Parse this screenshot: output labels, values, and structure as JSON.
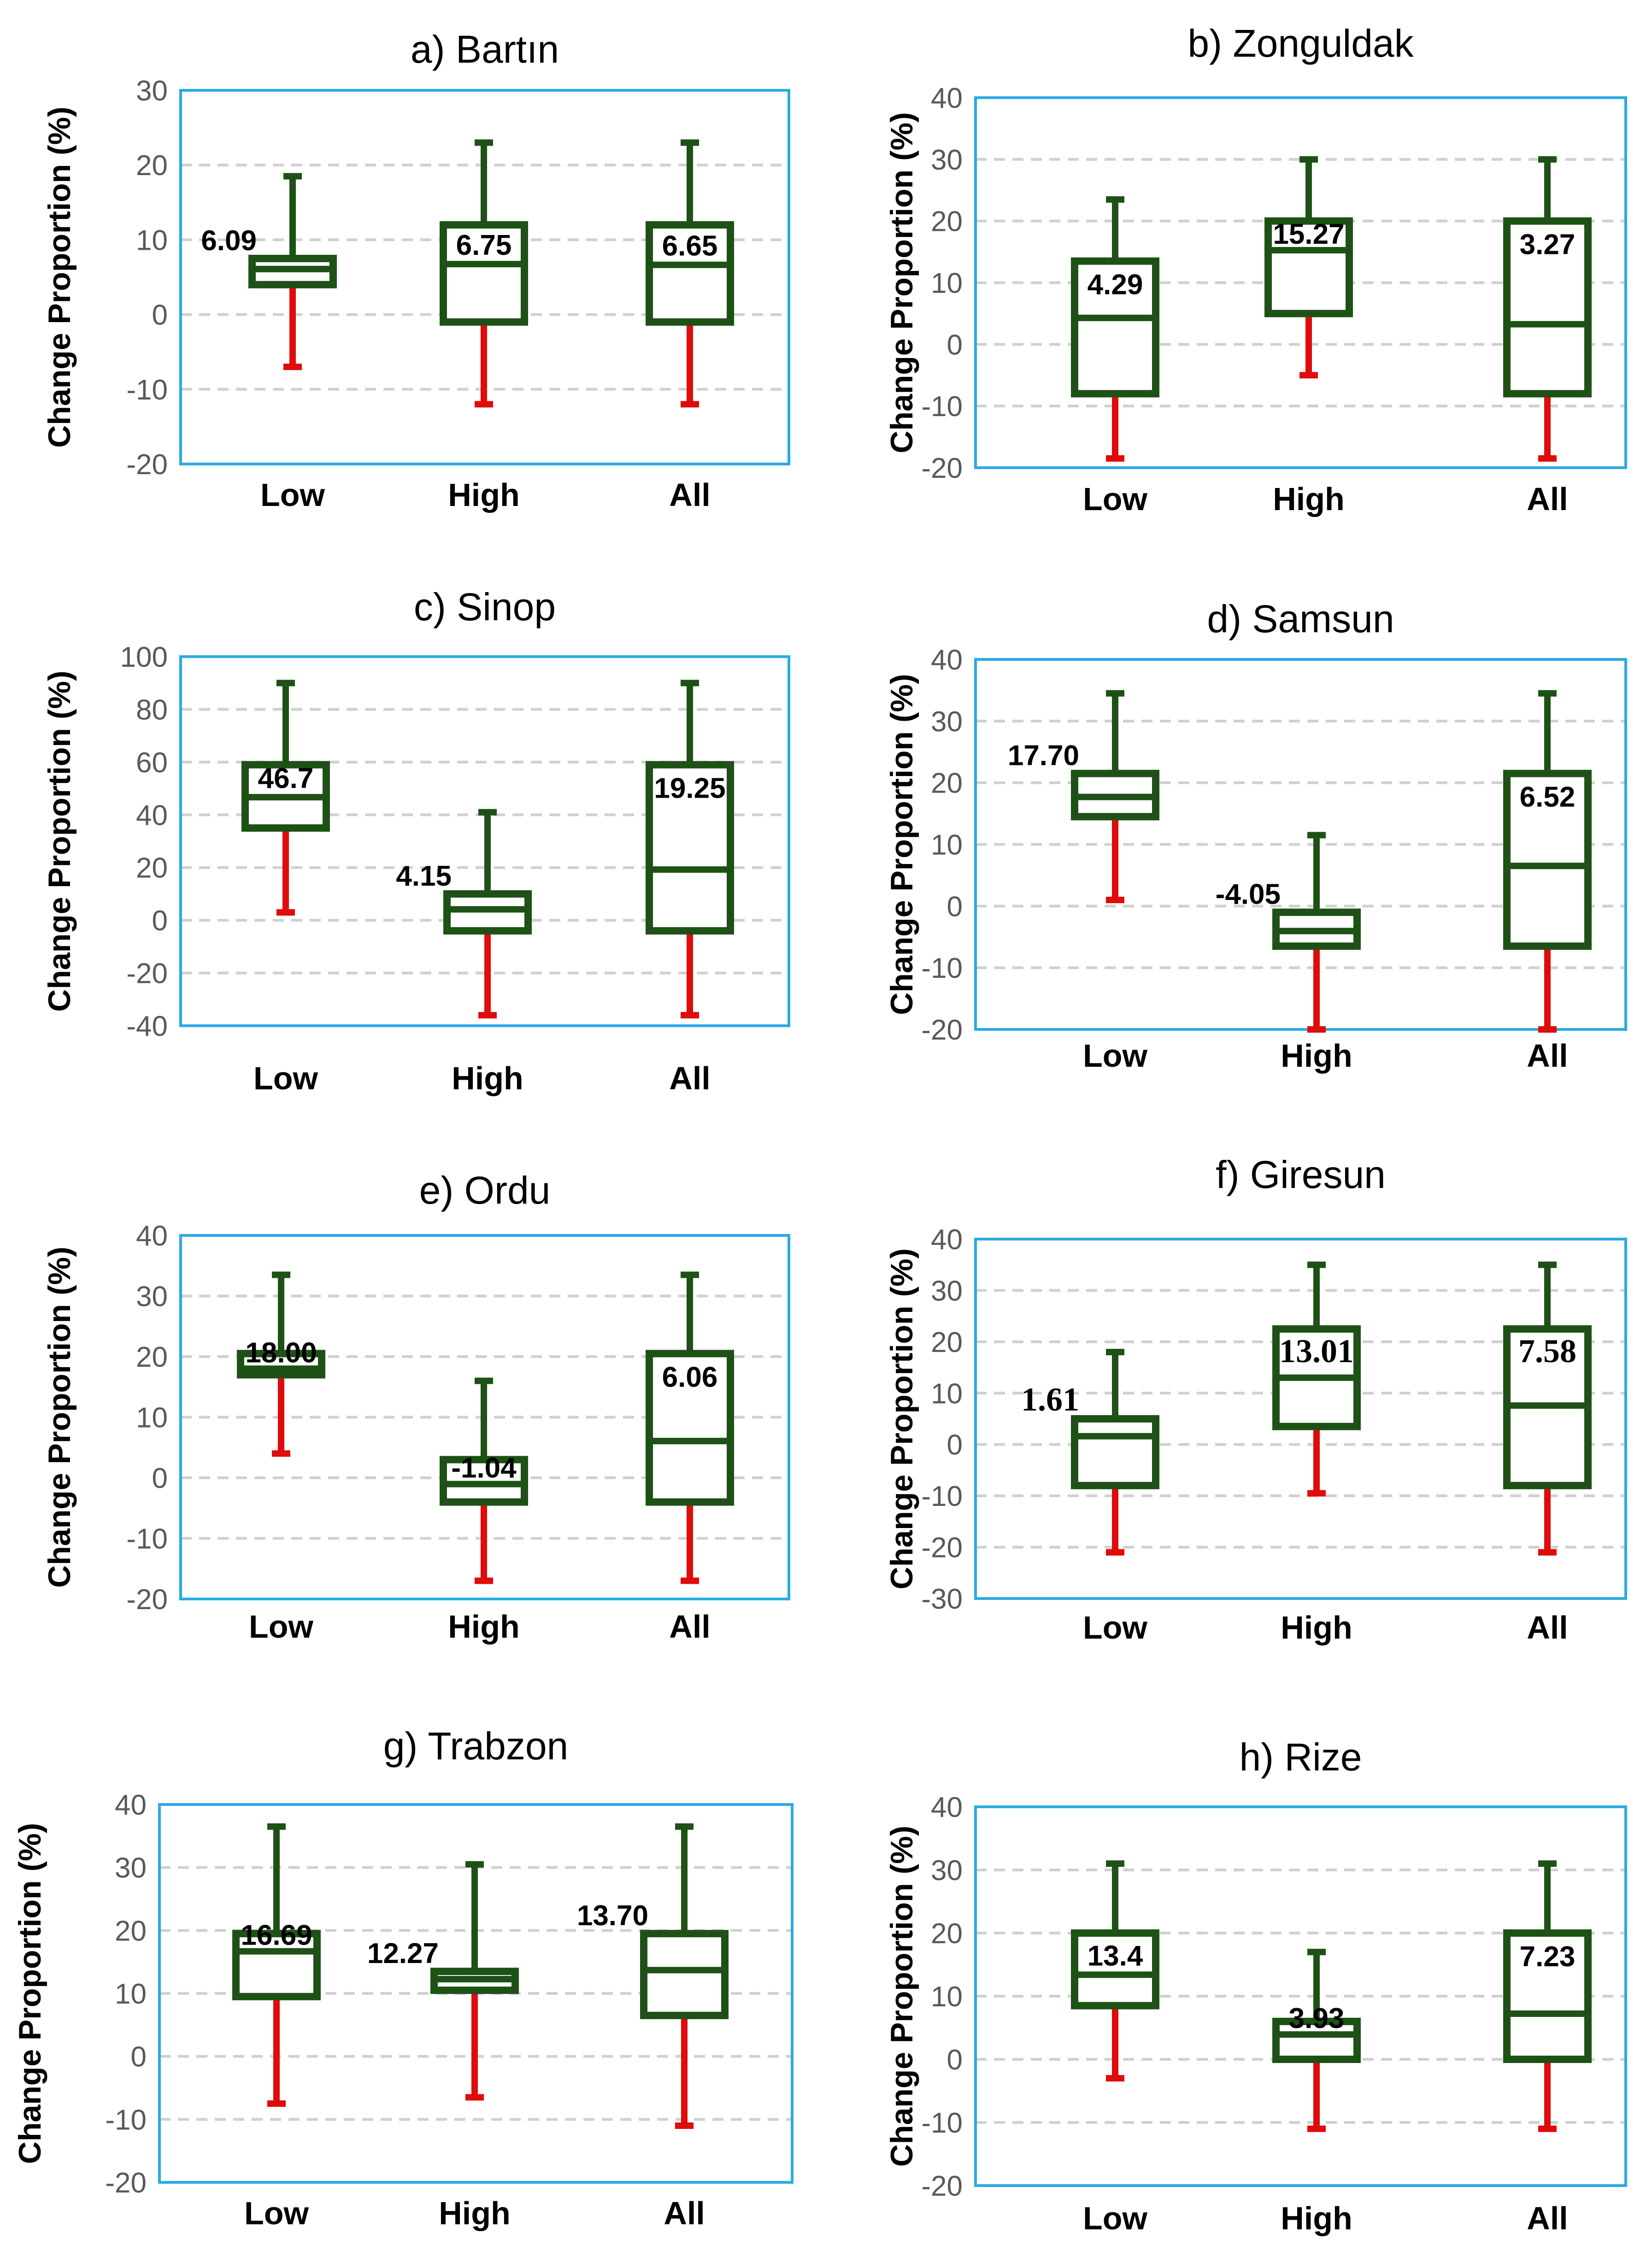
{
  "colors": {
    "box": "#1E5116",
    "upper_whisker": "#1E5116",
    "lower_whisker": "#E00B0B",
    "frame": "#29ABE2",
    "grid": "#D0D0D0"
  },
  "chart_data": [
    {
      "type": "box",
      "title": "a) Bartın",
      "ylabel": "Change Proportion (%)",
      "ylim": [
        -20,
        30
      ],
      "yticks": [
        -20,
        -10,
        0,
        10,
        20,
        30
      ],
      "grid": true,
      "categories": [
        "Low",
        "High",
        "All"
      ],
      "boxes": [
        {
          "category": "Low",
          "min": -7,
          "q1": 4,
          "median": 6.09,
          "q3": 7.5,
          "max": 18.5,
          "label": "6.09"
        },
        {
          "category": "High",
          "min": -12,
          "q1": -1,
          "median": 6.75,
          "q3": 12,
          "max": 23,
          "label": "6.75"
        },
        {
          "category": "All",
          "min": -12,
          "q1": -1,
          "median": 6.65,
          "q3": 12,
          "max": 23,
          "label": "6.65"
        }
      ]
    },
    {
      "type": "box",
      "title": "b) Zonguldak",
      "ylabel": "Change Proportion (%)",
      "ylim": [
        -20,
        40
      ],
      "yticks": [
        -20,
        -10,
        0,
        10,
        20,
        30,
        40
      ],
      "grid": true,
      "categories": [
        "Low",
        "High",
        "All"
      ],
      "boxes": [
        {
          "category": "Low",
          "min": -18.5,
          "q1": -8,
          "median": 4.29,
          "q3": 13.5,
          "max": 23.5,
          "label": "4.29"
        },
        {
          "category": "High",
          "min": -5,
          "q1": 5,
          "median": 15.27,
          "q3": 20,
          "max": 30,
          "label": "15.27"
        },
        {
          "category": "All",
          "min": -18.5,
          "q1": -8,
          "median": 3.27,
          "q3": 20,
          "max": 30,
          "label": "3.27"
        }
      ]
    },
    {
      "type": "box",
      "title": "c) Sinop",
      "ylabel": "Change Proportion (%)",
      "ylim": [
        -40,
        100
      ],
      "yticks": [
        -40,
        -20,
        0,
        20,
        40,
        60,
        80,
        100
      ],
      "grid": true,
      "categories": [
        "Low",
        "High",
        "All"
      ],
      "boxes": [
        {
          "category": "Low",
          "min": 3,
          "q1": 35,
          "median": 46.7,
          "q3": 59,
          "max": 90,
          "label": "46.7"
        },
        {
          "category": "High",
          "min": -36,
          "q1": -4,
          "median": 4.15,
          "q3": 10,
          "max": 41,
          "label": "4.15"
        },
        {
          "category": "All",
          "min": -36,
          "q1": -4,
          "median": 19.25,
          "q3": 59,
          "max": 90,
          "label": "19.25"
        }
      ]
    },
    {
      "type": "box",
      "title": "d) Samsun",
      "ylabel": "Change Proportion (%)",
      "ylim": [
        -20,
        40
      ],
      "yticks": [
        -20,
        -10,
        0,
        10,
        20,
        30,
        40
      ],
      "grid": true,
      "categories": [
        "Low",
        "High",
        "All"
      ],
      "boxes": [
        {
          "category": "Low",
          "min": 1,
          "q1": 14.5,
          "median": 17.7,
          "q3": 21.5,
          "max": 34.5,
          "label": "17.70"
        },
        {
          "category": "High",
          "min": -20,
          "q1": -6.5,
          "median": -4.05,
          "q3": -1,
          "max": 11.5,
          "label": "-4.05"
        },
        {
          "category": "All",
          "min": -20,
          "q1": -6.5,
          "median": 6.52,
          "q3": 21.5,
          "max": 34.5,
          "label": "6.52"
        }
      ]
    },
    {
      "type": "box",
      "title": "e) Ordu",
      "ylabel": "Change Proportion (%)",
      "ylim": [
        -20,
        40
      ],
      "yticks": [
        -20,
        -10,
        0,
        10,
        20,
        30,
        40
      ],
      "grid": true,
      "categories": [
        "Low",
        "High",
        "All"
      ],
      "boxes": [
        {
          "category": "Low",
          "min": 4,
          "q1": 17,
          "median": 18.0,
          "q3": 20.5,
          "max": 33.5,
          "label": "18.00"
        },
        {
          "category": "High",
          "min": -17,
          "q1": -4,
          "median": -1.04,
          "q3": 3,
          "max": 16,
          "label": "-1.04"
        },
        {
          "category": "All",
          "min": -17,
          "q1": -4,
          "median": 6.06,
          "q3": 20.5,
          "max": 33.5,
          "label": "6.06"
        }
      ]
    },
    {
      "type": "box",
      "title": "f) Giresun",
      "ylabel": "Change Proportion (%)",
      "ylim": [
        -30,
        40
      ],
      "yticks": [
        -30,
        -20,
        -10,
        0,
        10,
        20,
        30,
        40
      ],
      "grid": true,
      "categories": [
        "Low",
        "High",
        "All"
      ],
      "boxes": [
        {
          "category": "Low",
          "min": -21,
          "q1": -8,
          "median": 1.61,
          "q3": 5,
          "max": 18,
          "label": "1.61"
        },
        {
          "category": "High",
          "min": -9.5,
          "q1": 3.5,
          "median": 13.01,
          "q3": 22.5,
          "max": 35,
          "label": "13.01"
        },
        {
          "category": "All",
          "min": -21,
          "q1": -8,
          "median": 7.58,
          "q3": 22.5,
          "max": 35,
          "label": "7.58"
        }
      ]
    },
    {
      "type": "box",
      "title": "g) Trabzon",
      "ylabel": "Change Proportion (%)",
      "ylim": [
        -20,
        40
      ],
      "yticks": [
        -20,
        -10,
        0,
        10,
        20,
        30,
        40
      ],
      "grid": true,
      "categories": [
        "Low",
        "High",
        "All"
      ],
      "boxes": [
        {
          "category": "Low",
          "min": -7.5,
          "q1": 9.5,
          "median": 16.69,
          "q3": 19.5,
          "max": 36.5,
          "label": "16.69"
        },
        {
          "category": "High",
          "min": -6.5,
          "q1": 10.5,
          "median": 12.27,
          "q3": 13.5,
          "max": 30.5,
          "label": "12.27"
        },
        {
          "category": "All",
          "min": -11,
          "q1": 6.5,
          "median": 13.7,
          "q3": 19.5,
          "max": 36.5,
          "label": "13.70"
        }
      ]
    },
    {
      "type": "box",
      "title": "h) Rize",
      "ylabel": "Change Proportion (%)",
      "ylim": [
        -20,
        40
      ],
      "yticks": [
        -20,
        -10,
        0,
        10,
        20,
        30,
        40
      ],
      "grid": true,
      "categories": [
        "Low",
        "High",
        "All"
      ],
      "boxes": [
        {
          "category": "Low",
          "min": -3,
          "q1": 8.5,
          "median": 13.4,
          "q3": 20,
          "max": 31,
          "label": "13.4"
        },
        {
          "category": "High",
          "min": -11,
          "q1": 0,
          "median": 3.93,
          "q3": 6,
          "max": 17,
          "label": "3.93"
        },
        {
          "category": "All",
          "min": -11,
          "q1": 0,
          "median": 7.23,
          "q3": 20,
          "max": 31,
          "label": "7.23"
        }
      ]
    }
  ]
}
